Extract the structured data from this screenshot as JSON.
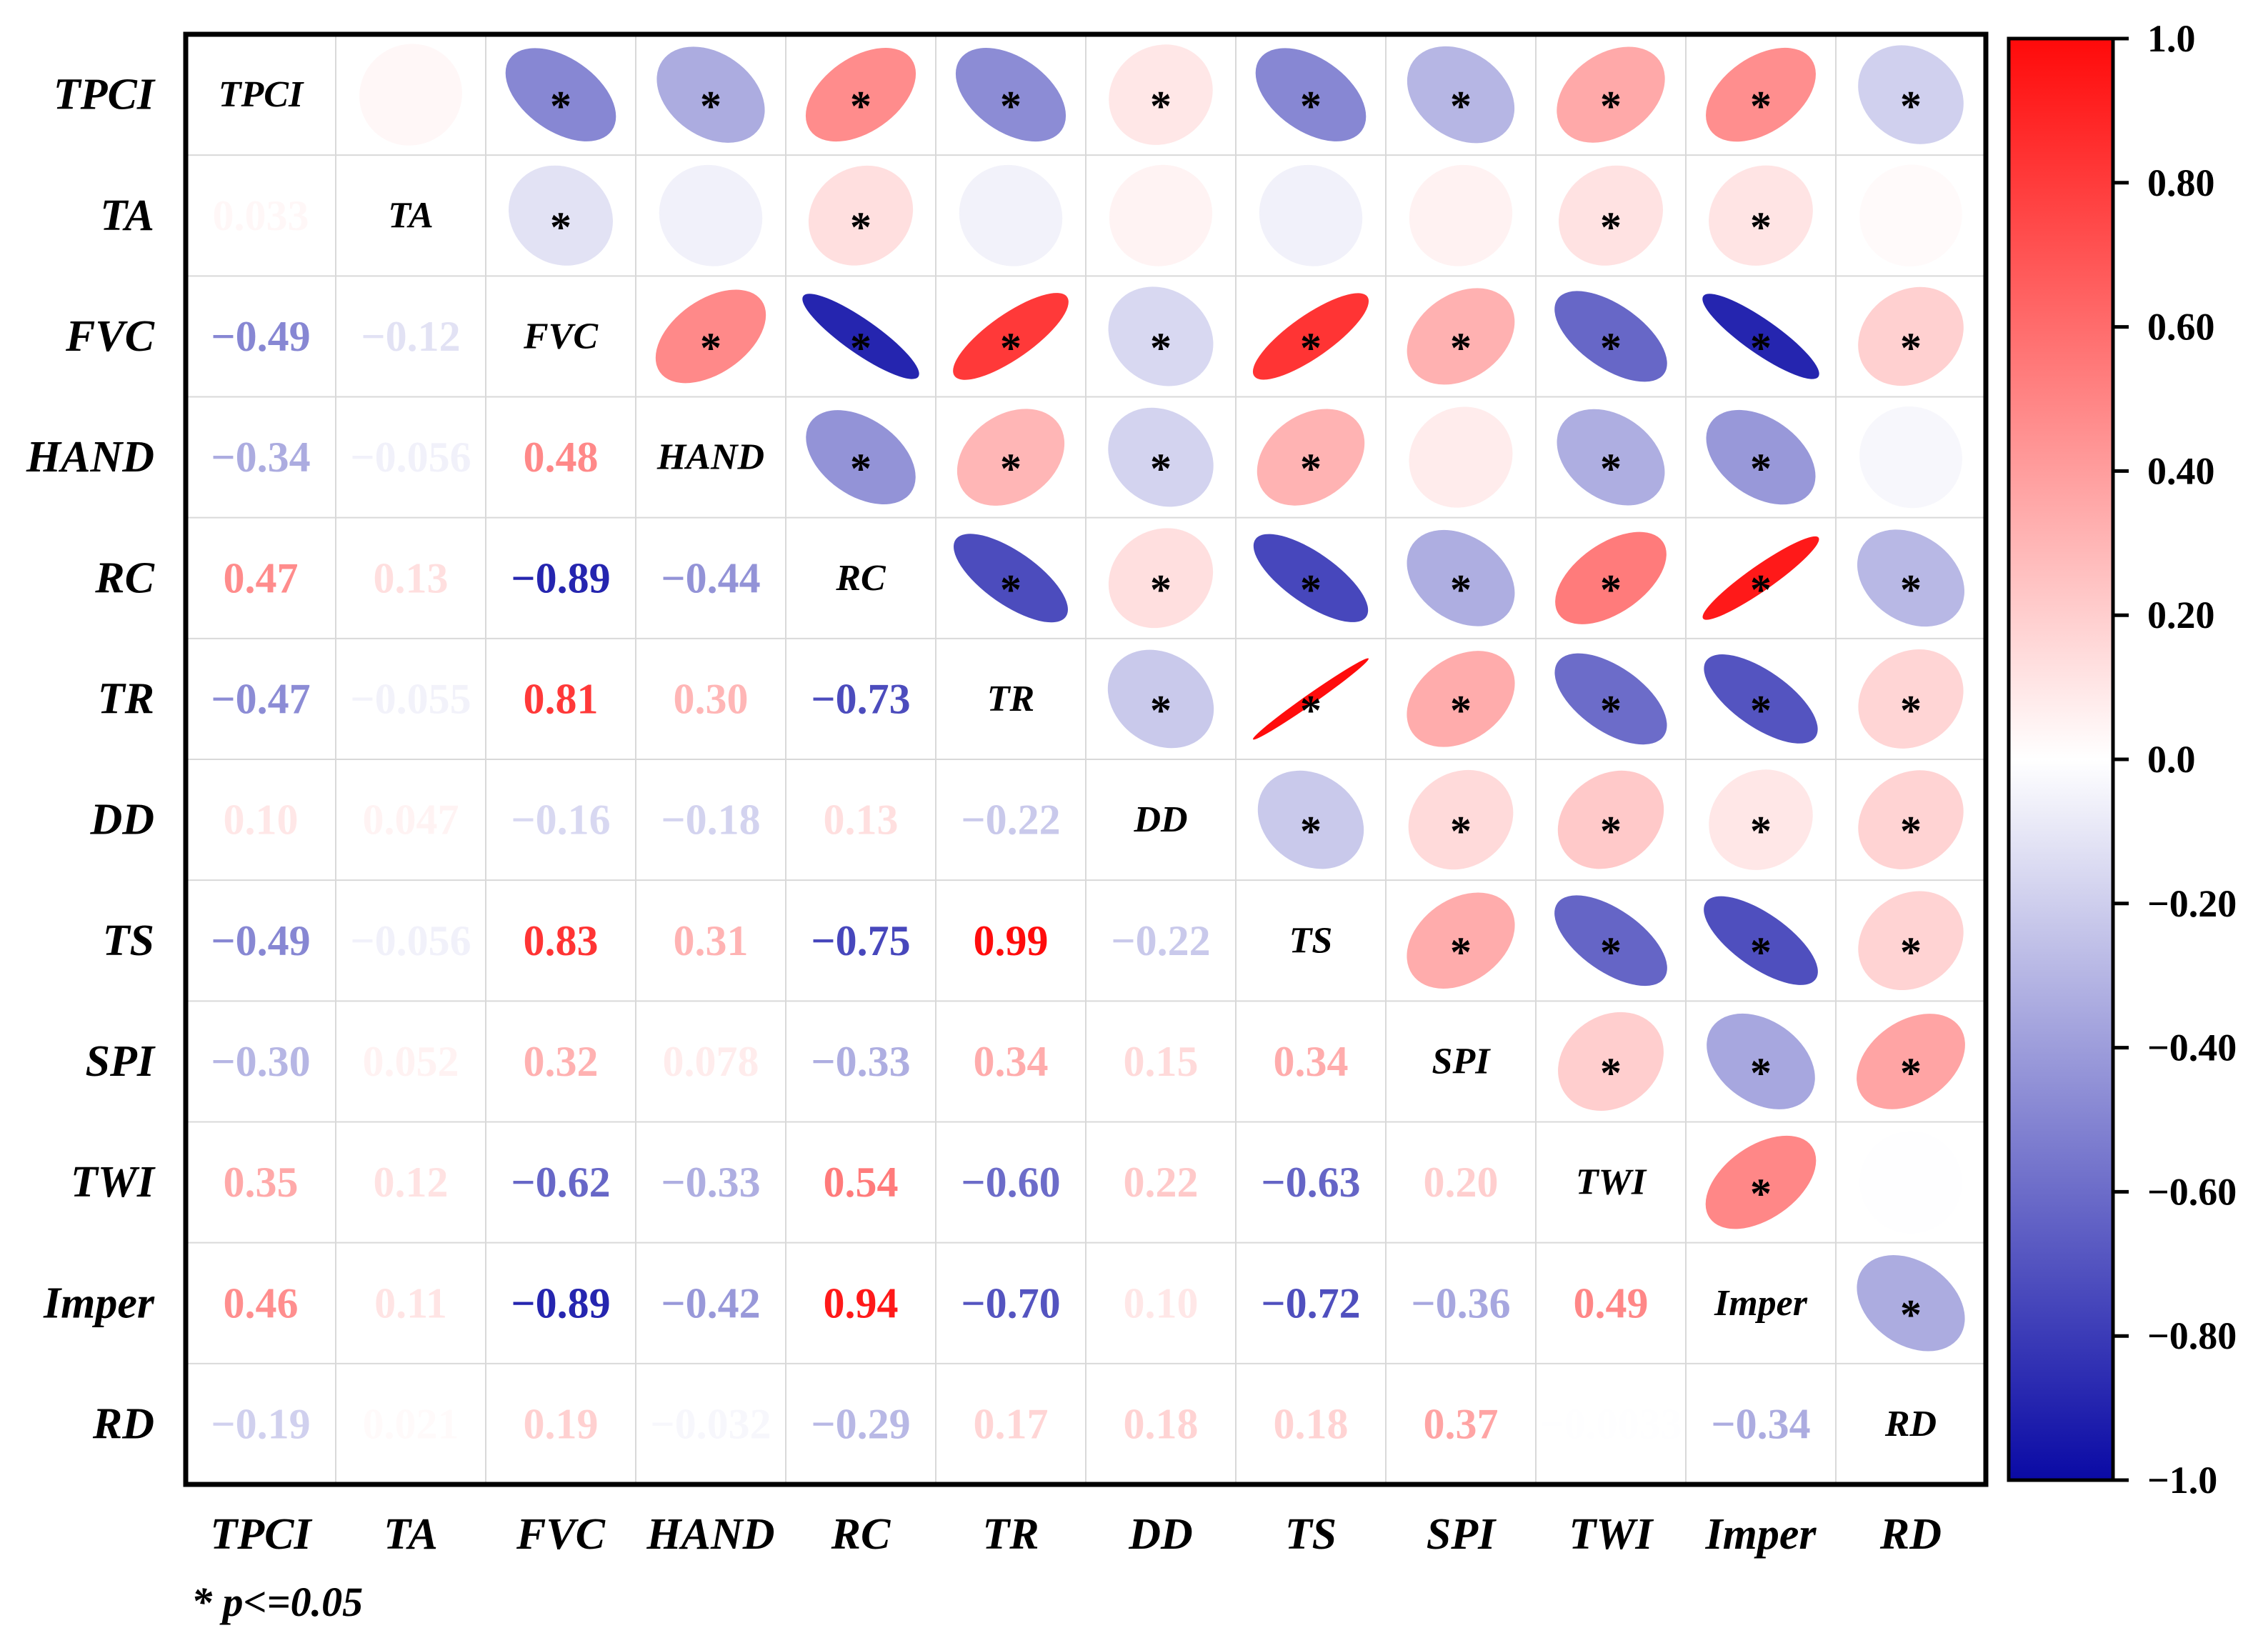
{
  "chart_data": {
    "type": "heatmap",
    "title": "",
    "variables": [
      "TPCI",
      "TA",
      "FVC",
      "HAND",
      "RC",
      "TR",
      "DD",
      "TS",
      "SPI",
      "TWI",
      "Imper",
      "RD"
    ],
    "correlation_labels": [
      [
        null,
        null,
        null,
        null,
        null,
        null,
        null,
        null,
        null,
        null,
        null,
        null
      ],
      [
        "0.033",
        null,
        null,
        null,
        null,
        null,
        null,
        null,
        null,
        null,
        null,
        null
      ],
      [
        "−0.49",
        "−0.12",
        null,
        null,
        null,
        null,
        null,
        null,
        null,
        null,
        null,
        null
      ],
      [
        "−0.34",
        "−0.056",
        "0.48",
        null,
        null,
        null,
        null,
        null,
        null,
        null,
        null,
        null
      ],
      [
        "0.47",
        "0.13",
        "−0.89",
        "−0.44",
        null,
        null,
        null,
        null,
        null,
        null,
        null,
        null
      ],
      [
        "−0.47",
        "−0.055",
        "0.81",
        "0.30",
        "−0.73",
        null,
        null,
        null,
        null,
        null,
        null,
        null
      ],
      [
        "0.10",
        "0.047",
        "−0.16",
        "−0.18",
        "0.13",
        "−0.22",
        null,
        null,
        null,
        null,
        null,
        null
      ],
      [
        "−0.49",
        "−0.056",
        "0.83",
        "0.31",
        "−0.75",
        "0.99",
        "−0.22",
        null,
        null,
        null,
        null,
        null
      ],
      [
        "−0.30",
        "0.052",
        "0.32",
        "0.078",
        "−0.33",
        "0.34",
        "0.15",
        "0.34",
        null,
        null,
        null,
        null
      ],
      [
        "0.35",
        "0.12",
        "−0.62",
        "−0.33",
        "0.54",
        "−0.60",
        "0.22",
        "−0.63",
        "0.20",
        null,
        null,
        null
      ],
      [
        "0.46",
        "0.11",
        "−0.89",
        "−0.42",
        "0.94",
        "−0.70",
        "0.10",
        "−0.72",
        "−0.36",
        "0.49",
        null,
        null
      ],
      [
        "−0.19",
        "0.021",
        "0.19",
        "−0.032",
        "−0.29",
        "0.17",
        "0.18",
        "0.18",
        "0.37",
        "−0.0033",
        "−0.34",
        null
      ]
    ],
    "significant_upper": [
      [
        false,
        false,
        true,
        true,
        true,
        true,
        true,
        true,
        true,
        true,
        true,
        true
      ],
      [
        false,
        false,
        true,
        false,
        true,
        false,
        false,
        false,
        false,
        true,
        true,
        false
      ],
      [
        false,
        false,
        false,
        true,
        true,
        true,
        true,
        true,
        true,
        true,
        true,
        true
      ],
      [
        false,
        false,
        false,
        false,
        true,
        true,
        true,
        true,
        false,
        true,
        true,
        false
      ],
      [
        false,
        false,
        false,
        false,
        false,
        true,
        true,
        true,
        true,
        true,
        true,
        true
      ],
      [
        false,
        false,
        false,
        false,
        false,
        false,
        true,
        true,
        true,
        true,
        true,
        true
      ],
      [
        false,
        false,
        false,
        false,
        false,
        false,
        false,
        true,
        true,
        true,
        true,
        true
      ],
      [
        false,
        false,
        false,
        false,
        false,
        false,
        false,
        false,
        true,
        true,
        true,
        true
      ],
      [
        false,
        false,
        false,
        false,
        false,
        false,
        false,
        false,
        false,
        true,
        true,
        true
      ],
      [
        false,
        false,
        false,
        false,
        false,
        false,
        false,
        false,
        false,
        false,
        true,
        false
      ],
      [
        false,
        false,
        false,
        false,
        false,
        false,
        false,
        false,
        false,
        false,
        false,
        true
      ],
      [
        false,
        false,
        false,
        false,
        false,
        false,
        false,
        false,
        false,
        false,
        false,
        false
      ]
    ],
    "significance_marker": "*",
    "footnote": "* p<=0.05",
    "colorbar": {
      "range": [
        -1.0,
        1.0
      ],
      "tick_values": [
        1.0,
        0.8,
        0.6,
        0.4,
        0.2,
        0.0,
        -0.2,
        -0.4,
        -0.6,
        -0.8,
        -1.0
      ],
      "tick_labels": [
        "1.0",
        "0.80",
        "0.60",
        "0.40",
        "0.20",
        "0.0",
        "−0.20",
        "−0.40",
        "−0.60",
        "−0.80",
        "−1.0"
      ],
      "colors": {
        "negative": "#0a0aa5",
        "zero": "#ffffff",
        "positive": "#ff0a0a"
      }
    }
  }
}
